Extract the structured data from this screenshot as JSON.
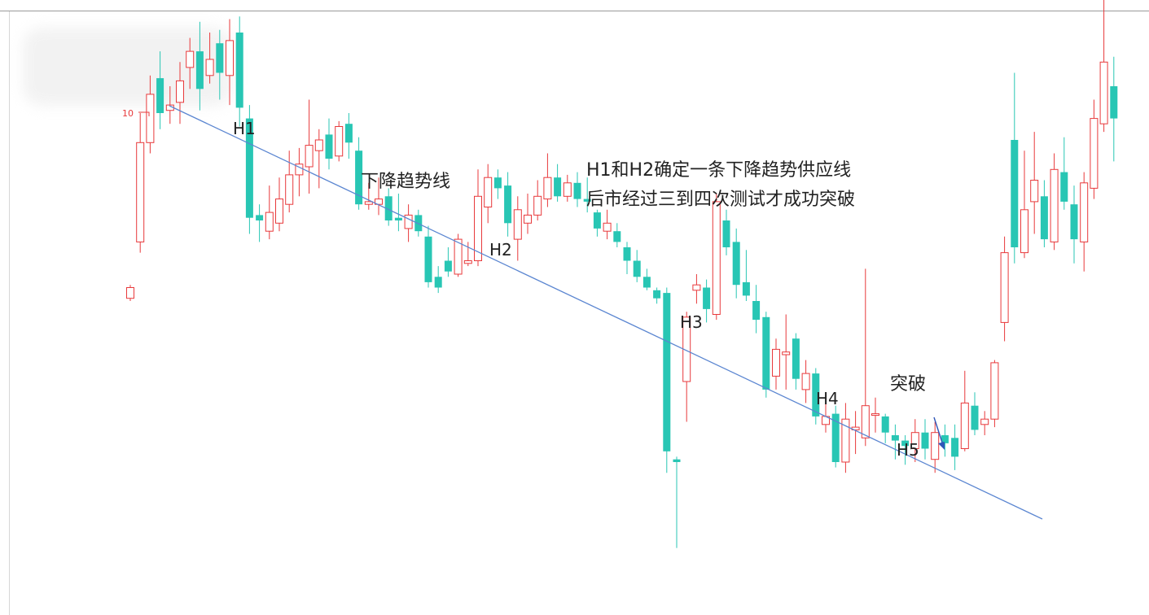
{
  "colors": {
    "up": "#e8393b",
    "down": "#28c6b4",
    "trendline": "#5b86d1",
    "arrow": "#2f56b8",
    "text": "#222222"
  },
  "texts": {
    "tick_label": "10",
    "h1": "H1",
    "h2": "H2",
    "h3": "H3",
    "h4": "H4",
    "h5": "H5",
    "trendline_label": "下降趋势线",
    "note_line1": "H1和H2确定一条下降趋势供应线",
    "note_line2": "后市经过三到四次测试才成功突破",
    "breakout_label": "突破"
  },
  "chart_data": {
    "type": "candlestick",
    "y_max_tick": 10,
    "trendline_points": [
      "H1",
      "H2",
      "H3",
      "H4",
      "H5"
    ],
    "candles": [
      {
        "d": "up",
        "o": 3.1,
        "c": 3.5,
        "h": 3.6,
        "l": 3.0
      },
      {
        "d": "up",
        "o": 5.2,
        "c": 8.9,
        "h": 10.0,
        "l": 4.8
      },
      {
        "d": "up",
        "o": 8.9,
        "c": 10.7,
        "h": 11.4,
        "l": 8.5
      },
      {
        "d": "down",
        "o": 11.3,
        "c": 10.0,
        "h": 12.3,
        "l": 9.4
      },
      {
        "d": "up",
        "o": 10.1,
        "c": 10.3,
        "h": 11.0,
        "l": 9.6
      },
      {
        "d": "up",
        "o": 10.4,
        "c": 11.2,
        "h": 11.9,
        "l": 9.6
      },
      {
        "d": "up",
        "o": 11.7,
        "c": 12.3,
        "h": 12.8,
        "l": 10.9
      },
      {
        "d": "down",
        "o": 12.3,
        "c": 10.9,
        "h": 13.4,
        "l": 10.1
      },
      {
        "d": "up",
        "o": 11.4,
        "c": 12.0,
        "h": 13.0,
        "l": 11.1
      },
      {
        "d": "down",
        "o": 12.6,
        "c": 11.5,
        "h": 13.1,
        "l": 10.5
      },
      {
        "d": "up",
        "o": 11.4,
        "c": 12.7,
        "h": 13.5,
        "l": 10.3
      },
      {
        "d": "down",
        "o": 13.0,
        "c": 10.2,
        "h": 13.6,
        "l": 9.5
      },
      {
        "d": "down",
        "o": 9.8,
        "c": 6.1,
        "h": 10.3,
        "l": 5.5
      },
      {
        "d": "down",
        "o": 6.2,
        "c": 6.0,
        "h": 6.6,
        "l": 5.2
      },
      {
        "d": "up",
        "o": 5.6,
        "c": 6.3,
        "h": 7.3,
        "l": 5.3
      },
      {
        "d": "up",
        "o": 5.9,
        "c": 6.8,
        "h": 7.6,
        "l": 5.6
      },
      {
        "d": "up",
        "o": 6.6,
        "c": 7.7,
        "h": 8.6,
        "l": 6.3
      },
      {
        "d": "up",
        "o": 7.7,
        "c": 8.1,
        "h": 8.7,
        "l": 6.9
      },
      {
        "d": "up",
        "o": 8.0,
        "c": 8.8,
        "h": 10.5,
        "l": 7.0
      },
      {
        "d": "up",
        "o": 8.6,
        "c": 9.0,
        "h": 9.4,
        "l": 7.2
      },
      {
        "d": "down",
        "o": 9.2,
        "c": 8.3,
        "h": 9.8,
        "l": 7.9
      },
      {
        "d": "up",
        "o": 8.4,
        "c": 9.5,
        "h": 9.7,
        "l": 8.2
      },
      {
        "d": "down",
        "o": 9.6,
        "c": 8.9,
        "h": 10.0,
        "l": 8.3
      },
      {
        "d": "down",
        "o": 8.6,
        "c": 6.6,
        "h": 9.1,
        "l": 6.4
      },
      {
        "d": "up",
        "o": 6.6,
        "c": 6.7,
        "h": 7.4,
        "l": 6.4
      },
      {
        "d": "up",
        "o": 6.6,
        "c": 6.8,
        "h": 7.6,
        "l": 6.2
      },
      {
        "d": "down",
        "o": 6.9,
        "c": 6.0,
        "h": 7.2,
        "l": 5.8
      },
      {
        "d": "down",
        "o": 6.1,
        "c": 6.0,
        "h": 7.0,
        "l": 5.6
      },
      {
        "d": "up",
        "o": 5.7,
        "c": 6.2,
        "h": 6.6,
        "l": 5.2
      },
      {
        "d": "down",
        "o": 6.2,
        "c": 5.6,
        "h": 6.4,
        "l": 5.4
      },
      {
        "d": "down",
        "o": 5.4,
        "c": 3.7,
        "h": 5.8,
        "l": 3.5
      },
      {
        "d": "down",
        "o": 3.9,
        "c": 3.5,
        "h": 4.3,
        "l": 3.3
      },
      {
        "d": "down",
        "o": 4.5,
        "c": 4.1,
        "h": 5.0,
        "l": 3.9
      },
      {
        "d": "up",
        "o": 4.0,
        "c": 5.3,
        "h": 5.5,
        "l": 3.9
      },
      {
        "d": "up",
        "o": 4.4,
        "c": 4.5,
        "h": 5.2,
        "l": 4.3
      },
      {
        "d": "up",
        "o": 4.5,
        "c": 6.9,
        "h": 7.9,
        "l": 4.3
      },
      {
        "d": "up",
        "o": 6.5,
        "c": 7.6,
        "h": 8.1,
        "l": 5.9
      },
      {
        "d": "down",
        "o": 7.6,
        "c": 7.2,
        "h": 7.9,
        "l": 6.8
      },
      {
        "d": "down",
        "o": 7.3,
        "c": 5.9,
        "h": 7.8,
        "l": 5.4
      },
      {
        "d": "up",
        "o": 5.3,
        "c": 6.4,
        "h": 6.9,
        "l": 4.5
      },
      {
        "d": "up",
        "o": 5.9,
        "c": 6.2,
        "h": 7.0,
        "l": 5.5
      },
      {
        "d": "up",
        "o": 6.2,
        "c": 6.9,
        "h": 7.5,
        "l": 6.0
      },
      {
        "d": "up",
        "o": 6.8,
        "c": 7.6,
        "h": 8.5,
        "l": 6.5
      },
      {
        "d": "down",
        "o": 7.6,
        "c": 6.9,
        "h": 8.1,
        "l": 6.7
      },
      {
        "d": "up",
        "o": 6.9,
        "c": 7.4,
        "h": 7.7,
        "l": 6.7
      },
      {
        "d": "down",
        "o": 7.4,
        "c": 6.8,
        "h": 7.8,
        "l": 6.5
      },
      {
        "d": "down",
        "o": 6.8,
        "c": 6.7,
        "h": 7.6,
        "l": 6.3
      },
      {
        "d": "down",
        "o": 6.3,
        "c": 5.7,
        "h": 6.4,
        "l": 5.4
      },
      {
        "d": "up",
        "o": 5.6,
        "c": 5.9,
        "h": 6.4,
        "l": 5.3
      },
      {
        "d": "down",
        "o": 5.6,
        "c": 5.2,
        "h": 5.9,
        "l": 5.0
      },
      {
        "d": "down",
        "o": 5.0,
        "c": 4.5,
        "h": 5.2,
        "l": 4.0
      },
      {
        "d": "down",
        "o": 4.5,
        "c": 3.9,
        "h": 4.9,
        "l": 3.7
      },
      {
        "d": "down",
        "o": 3.9,
        "c": 3.5,
        "h": 4.2,
        "l": 3.4
      },
      {
        "d": "down",
        "o": 3.4,
        "c": 3.1,
        "h": 3.5,
        "l": 2.9
      },
      {
        "d": "down",
        "o": 3.3,
        "c": -2.6,
        "h": 3.5,
        "l": -3.4
      },
      {
        "d": "down",
        "o": -2.9,
        "c": -3.0,
        "h": -2.8,
        "l": -6.2
      },
      {
        "d": "up",
        "o": 0.0,
        "c": 2.4,
        "h": 2.6,
        "l": -1.5
      },
      {
        "d": "up",
        "o": 3.4,
        "c": 3.6,
        "h": 4.0,
        "l": 2.9
      },
      {
        "d": "down",
        "o": 3.5,
        "c": 2.7,
        "h": 3.8,
        "l": 2.2
      },
      {
        "d": "up",
        "o": 2.5,
        "c": 6.7,
        "h": 7.0,
        "l": 2.3
      },
      {
        "d": "down",
        "o": 6.0,
        "c": 5.0,
        "h": 6.4,
        "l": 4.7
      },
      {
        "d": "down",
        "o": 5.2,
        "c": 3.6,
        "h": 5.7,
        "l": 3.1
      },
      {
        "d": "down",
        "o": 3.7,
        "c": 3.2,
        "h": 4.9,
        "l": 3.0
      },
      {
        "d": "down",
        "o": 3.0,
        "c": 2.3,
        "h": 3.6,
        "l": 1.8
      },
      {
        "d": "down",
        "o": 2.4,
        "c": -0.3,
        "h": 2.6,
        "l": -0.6
      },
      {
        "d": "up",
        "o": 0.2,
        "c": 1.2,
        "h": 1.6,
        "l": -0.3
      },
      {
        "d": "up",
        "o": 1.0,
        "c": 1.1,
        "h": 2.5,
        "l": -0.3
      },
      {
        "d": "down",
        "o": 1.6,
        "c": 0.1,
        "h": 1.8,
        "l": -0.3
      },
      {
        "d": "up",
        "o": -0.3,
        "c": 0.3,
        "h": 0.8,
        "l": -0.8
      },
      {
        "d": "down",
        "o": 0.3,
        "c": -1.3,
        "h": 0.5,
        "l": -1.6
      },
      {
        "d": "up",
        "o": -1.6,
        "c": -1.3,
        "h": -0.8,
        "l": -1.9
      },
      {
        "d": "down",
        "o": -1.2,
        "c": -3.0,
        "h": -0.9,
        "l": -3.2
      },
      {
        "d": "up",
        "o": -3.0,
        "c": -1.4,
        "h": -0.8,
        "l": -3.4
      },
      {
        "d": "up",
        "o": -1.8,
        "c": -1.7,
        "h": -1.1,
        "l": -2.7
      },
      {
        "d": "up",
        "o": -2.1,
        "c": -0.9,
        "h": 4.2,
        "l": -2.4
      },
      {
        "d": "up",
        "o": -1.2,
        "c": -1.2,
        "h": -0.6,
        "l": -1.9
      },
      {
        "d": "down",
        "o": -1.3,
        "c": -1.9,
        "h": -1.2,
        "l": -2.3
      },
      {
        "d": "down",
        "o": -2.0,
        "c": -2.2,
        "h": -1.6,
        "l": -2.9
      },
      {
        "d": "down",
        "o": -2.2,
        "c": -2.4,
        "h": -2.0,
        "l": -3.1
      },
      {
        "d": "up",
        "o": -2.5,
        "c": -1.9,
        "h": -1.4,
        "l": -3.0
      },
      {
        "d": "down",
        "o": -1.9,
        "c": -2.5,
        "h": -1.4,
        "l": -2.9
      },
      {
        "d": "up",
        "o": -2.9,
        "c": -1.9,
        "h": -1.5,
        "l": -3.4
      },
      {
        "d": "down",
        "o": -2.0,
        "c": -2.3,
        "h": -1.6,
        "l": -2.8
      },
      {
        "d": "down",
        "o": -2.1,
        "c": -2.8,
        "h": -1.6,
        "l": -3.3
      },
      {
        "d": "up",
        "o": -2.5,
        "c": -0.8,
        "h": 0.4,
        "l": -2.6
      },
      {
        "d": "down",
        "o": -0.9,
        "c": -1.8,
        "h": -0.4,
        "l": -2.0
      },
      {
        "d": "up",
        "o": -1.6,
        "c": -1.4,
        "h": -1.1,
        "l": -2.0
      },
      {
        "d": "up",
        "o": -1.4,
        "c": 0.7,
        "h": 0.8,
        "l": -1.7
      },
      {
        "d": "up",
        "o": 2.2,
        "c": 4.8,
        "h": 5.4,
        "l": 1.5
      },
      {
        "d": "down",
        "o": 9.0,
        "c": 5.0,
        "h": 11.5,
        "l": 4.4
      },
      {
        "d": "up",
        "o": 4.8,
        "c": 6.4,
        "h": 8.6,
        "l": 4.6
      },
      {
        "d": "up",
        "o": 6.7,
        "c": 7.5,
        "h": 9.3,
        "l": 5.5
      },
      {
        "d": "down",
        "o": 6.9,
        "c": 5.3,
        "h": 7.5,
        "l": 5.0
      },
      {
        "d": "up",
        "o": 5.2,
        "c": 7.9,
        "h": 8.5,
        "l": 4.9
      },
      {
        "d": "down",
        "o": 7.8,
        "c": 6.7,
        "h": 9.1,
        "l": 6.4
      },
      {
        "d": "down",
        "o": 6.6,
        "c": 5.3,
        "h": 7.3,
        "l": 4.4
      },
      {
        "d": "up",
        "o": 5.2,
        "c": 7.4,
        "h": 7.8,
        "l": 4.1
      },
      {
        "d": "up",
        "o": 7.2,
        "c": 9.8,
        "h": 10.5,
        "l": 6.8
      },
      {
        "d": "up",
        "o": 9.6,
        "c": 11.9,
        "h": 15.5,
        "l": 9.3
      },
      {
        "d": "down",
        "o": 11.0,
        "c": 9.8,
        "h": 12.1,
        "l": 8.2
      }
    ]
  }
}
